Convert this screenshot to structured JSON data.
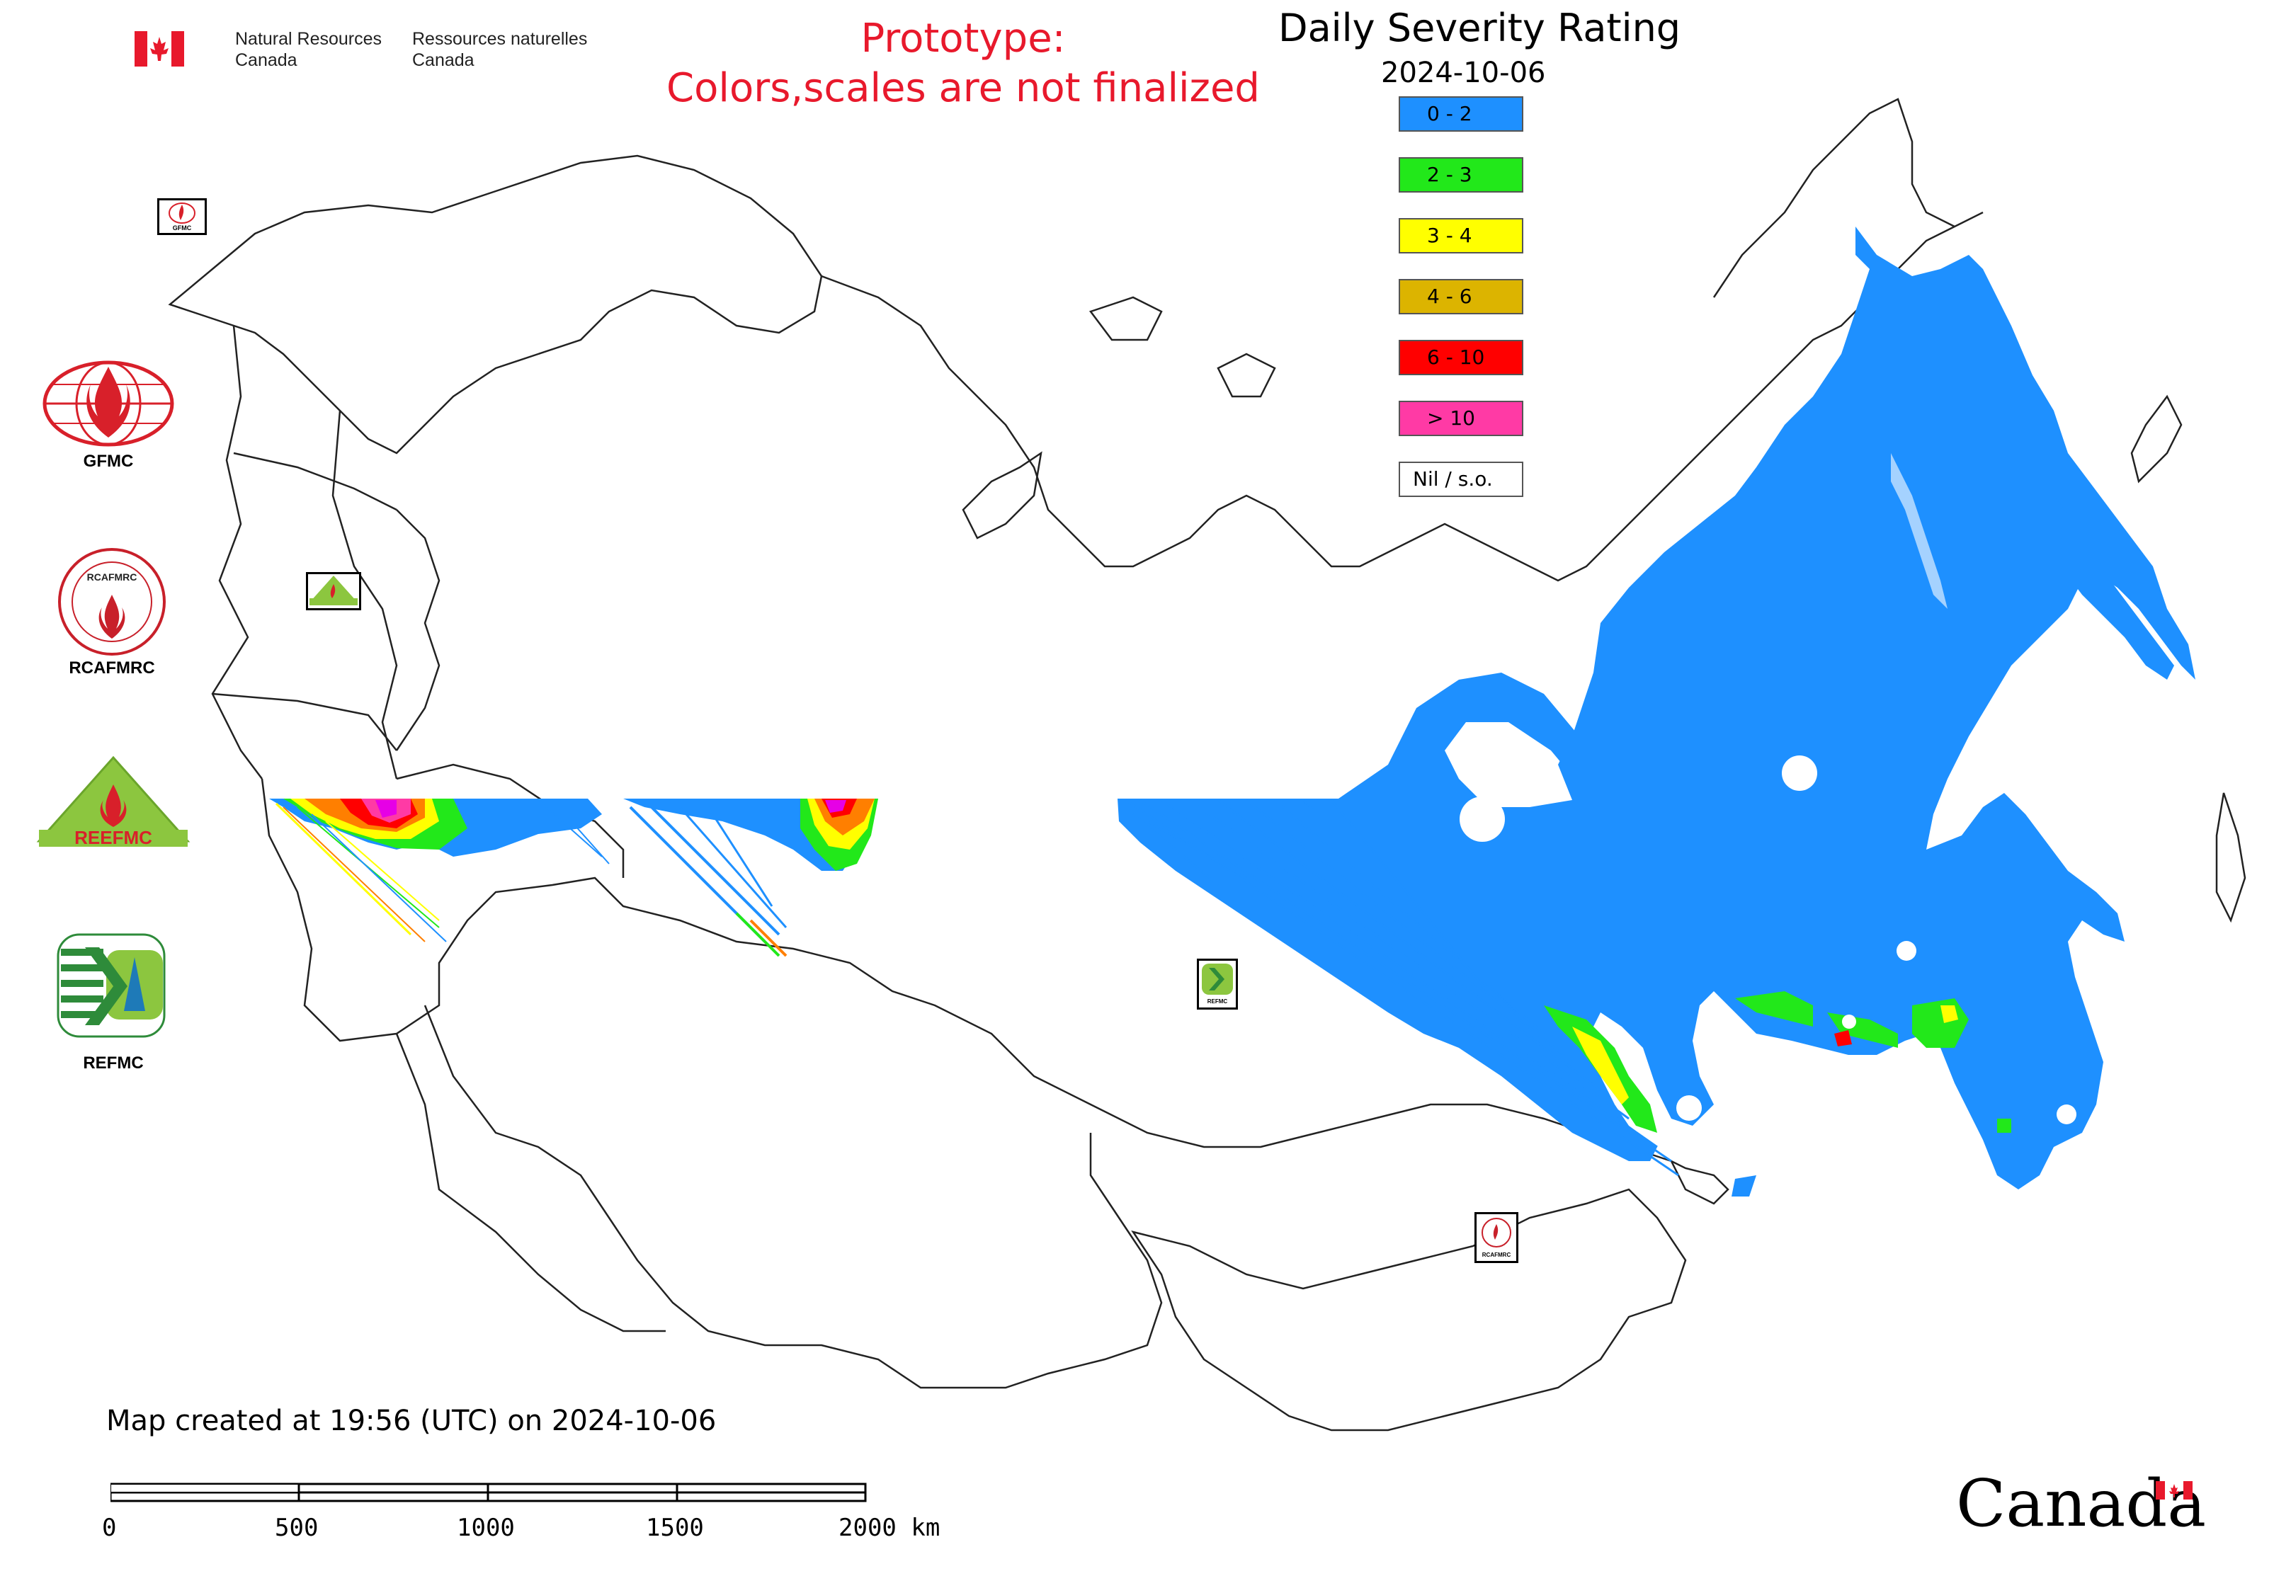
{
  "header": {
    "nrcan_en_line1": "Natural Resources",
    "nrcan_en_line2": "Canada",
    "nrcan_fr_line1": "Ressources naturelles",
    "nrcan_fr_line2": "Canada",
    "prototype_line1": "Prototype:",
    "prototype_line2": "Colors,scales are not finalized",
    "title": "Daily Severity Rating",
    "date": "2024-10-06"
  },
  "legend": [
    {
      "label": "0 - 2",
      "color": "#1e90ff"
    },
    {
      "label": "2 - 3",
      "color": "#22e81a"
    },
    {
      "label": "3 - 4",
      "color": "#ffff00"
    },
    {
      "label": "4 - 6",
      "color": "#dcb400"
    },
    {
      "label": "6 - 10",
      "color": "#ff0000"
    },
    {
      "label": "> 10",
      "color": "#ff3aa5"
    },
    {
      "label": "Nil / s.o.",
      "color": "#ffffff"
    }
  ],
  "orgs": {
    "gfmc": "GFMC",
    "rcafmrc": "RCAFMRC",
    "reefmc": "REEFMC",
    "refmc": "REFMC",
    "refmc_small": "REFMC",
    "rcafmrc_small": "RCAFMRC",
    "gfmc_small": "GFMC"
  },
  "footer": {
    "map_created": "Map created at 19:56 (UTC) on 2024-10-06",
    "scale_ticks": [
      "0",
      "500",
      "1000",
      "1500",
      "2000 km"
    ],
    "wordmark": "Canada"
  }
}
